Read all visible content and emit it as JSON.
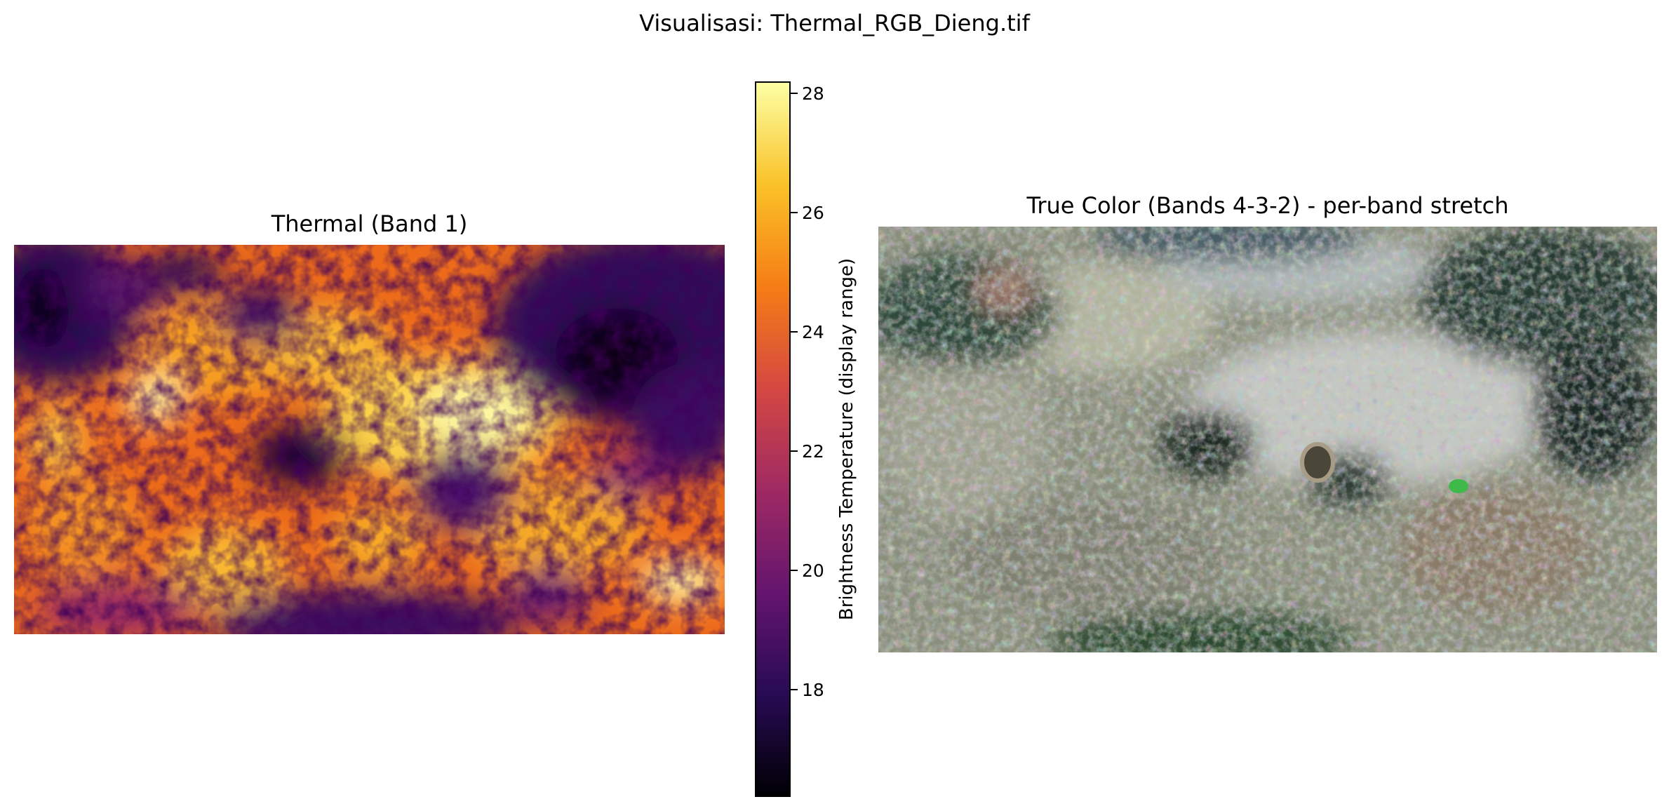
{
  "figure": {
    "suptitle": "Visualisasi: Thermal_RGB_Dieng.tif"
  },
  "thermal_panel": {
    "title": "Thermal (Band 1)",
    "colormap": "inferno"
  },
  "rgb_panel": {
    "title": "True Color (Bands 4-3-2) - per-band stretch"
  },
  "colorbar": {
    "label": "Brightness Temperature (display range)",
    "vmin": 16.2,
    "vmax": 28.2,
    "ticks": [
      {
        "value": 18,
        "label": "18"
      },
      {
        "value": 20,
        "label": "20"
      },
      {
        "value": 22,
        "label": "22"
      },
      {
        "value": 24,
        "label": "24"
      },
      {
        "value": 26,
        "label": "26"
      },
      {
        "value": 28,
        "label": "28"
      }
    ],
    "colors": [
      "#000004",
      "#280b54",
      "#65156e",
      "#9f2a63",
      "#d44842",
      "#f57d15",
      "#fac228",
      "#fcffa4"
    ]
  }
}
